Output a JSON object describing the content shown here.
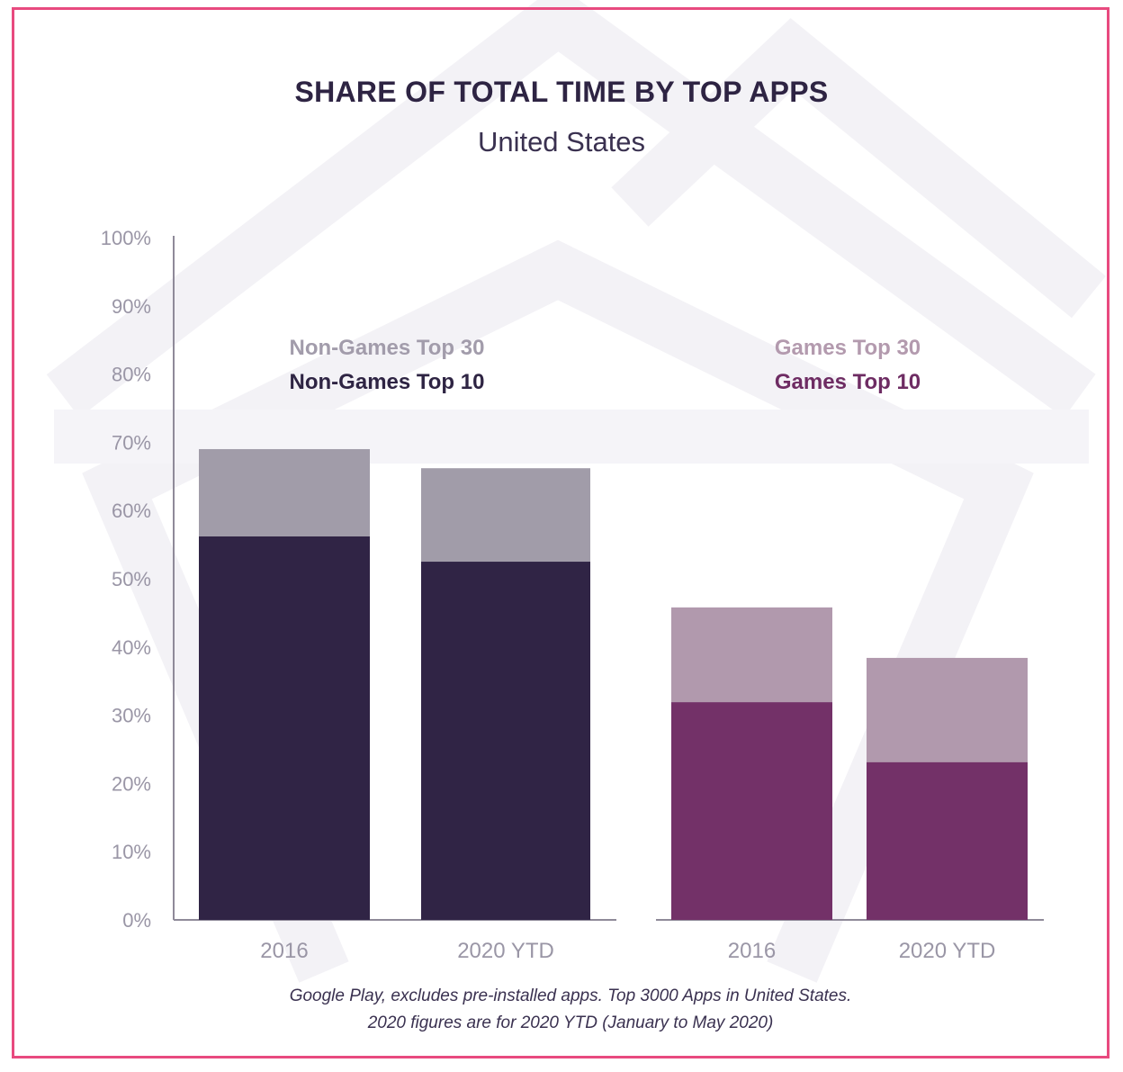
{
  "title": "SHARE OF TOTAL TIME BY TOP APPS",
  "subtitle": "United States",
  "footnote": {
    "line1": "Google Play, excludes pre-installed apps. Top 3000 Apps in United States.",
    "line2": "2020 figures are for 2020 YTD (January to May 2020)"
  },
  "colors": {
    "frame": "#e84a7f",
    "title": "#2e2443",
    "axis_text": "#9a96a6",
    "non_games_top30": "#a19ca9",
    "non_games_top10": "#302445",
    "games_top30": "#b199ad",
    "games_top10": "#733168",
    "non_games_top30_label": "#a29cab",
    "non_games_top10_label": "#2e2443",
    "games_top30_label": "#b39aae",
    "games_top10_label": "#6e2c63"
  },
  "chart_data": {
    "type": "bar",
    "stacked": "overlay",
    "y_tick_labels": [
      "0%",
      "10%",
      "20%",
      "30%",
      "40%",
      "50%",
      "60%",
      "70%",
      "80%",
      "90%",
      "100%"
    ],
    "ylim": [
      0,
      100
    ],
    "grid": false,
    "groups": [
      {
        "categories": [
          "2016",
          "2020 YTD"
        ],
        "series": [
          {
            "name": "Non-Games Top 30",
            "values": [
              69,
              66.2
            ],
            "color_key": "non_games_top30"
          },
          {
            "name": "Non-Games Top 10",
            "values": [
              56.2,
              52.5
            ],
            "color_key": "non_games_top10"
          }
        ]
      },
      {
        "categories": [
          "2016",
          "2020 YTD"
        ],
        "series": [
          {
            "name": "Games Top 30",
            "values": [
              45.8,
              38.4
            ],
            "color_key": "games_top30"
          },
          {
            "name": "Games Top 10",
            "values": [
              31.9,
              23.1
            ],
            "color_key": "games_top10"
          }
        ]
      }
    ]
  }
}
